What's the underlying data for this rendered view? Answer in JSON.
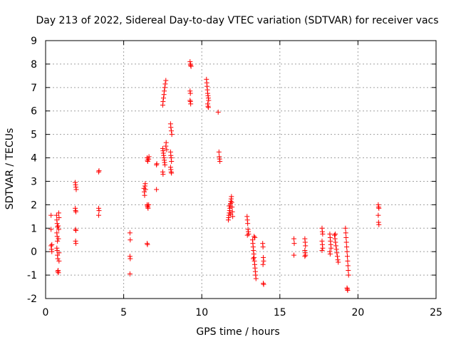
{
  "chart_data": {
    "type": "scatter",
    "title": "Day 213 of 2022, Sidereal Day-to-day VTEC variation (SDTVAR) for receiver vacs",
    "xlabel": "GPS time / hours",
    "ylabel": "SDTVAR / TECUs",
    "xlim": [
      0,
      25
    ],
    "ylim": [
      -2,
      9
    ],
    "xticks": [
      0,
      5,
      10,
      15,
      20,
      25
    ],
    "yticks": [
      -2,
      -1,
      0,
      1,
      2,
      3,
      4,
      5,
      6,
      7,
      8,
      9
    ],
    "grid": true,
    "marker": "+",
    "color": "#ff0000",
    "series": [
      {
        "name": "SDTVAR",
        "points": [
          [
            0.35,
            1.55
          ],
          [
            0.35,
            0.95
          ],
          [
            0.35,
            0.25
          ],
          [
            0.38,
            0.1
          ],
          [
            0.4,
            0.0
          ],
          [
            0.4,
            0.3
          ],
          [
            0.7,
            1.55
          ],
          [
            0.72,
            1.35
          ],
          [
            0.74,
            1.2
          ],
          [
            0.76,
            1.05
          ],
          [
            0.72,
            0.8
          ],
          [
            0.74,
            0.65
          ],
          [
            0.76,
            0.45
          ],
          [
            0.72,
            0.15
          ],
          [
            0.74,
            0.05
          ],
          [
            0.76,
            -0.15
          ],
          [
            0.78,
            -0.3
          ],
          [
            0.8,
            -0.8
          ],
          [
            0.82,
            -0.9
          ],
          [
            0.84,
            1.65
          ],
          [
            0.86,
            1.45
          ],
          [
            0.84,
            0.95
          ],
          [
            0.86,
            -0.05
          ],
          [
            0.86,
            -0.4
          ],
          [
            0.78,
            -0.85
          ],
          [
            0.8,
            1.1
          ],
          [
            0.82,
            0.55
          ],
          [
            1.9,
            2.95
          ],
          [
            1.92,
            2.85
          ],
          [
            1.94,
            2.75
          ],
          [
            1.96,
            2.65
          ],
          [
            1.9,
            1.85
          ],
          [
            1.92,
            1.75
          ],
          [
            1.94,
            1.7
          ],
          [
            1.92,
            0.95
          ],
          [
            1.94,
            0.9
          ],
          [
            1.92,
            0.45
          ],
          [
            1.94,
            0.35
          ],
          [
            3.4,
            3.4
          ],
          [
            3.42,
            3.45
          ],
          [
            3.4,
            1.85
          ],
          [
            3.42,
            1.75
          ],
          [
            3.4,
            1.55
          ],
          [
            5.4,
            0.8
          ],
          [
            5.42,
            0.5
          ],
          [
            5.4,
            -0.2
          ],
          [
            5.42,
            -0.3
          ],
          [
            5.4,
            -0.95
          ],
          [
            6.3,
            2.7
          ],
          [
            6.32,
            2.55
          ],
          [
            6.34,
            2.4
          ],
          [
            6.36,
            2.8
          ],
          [
            6.38,
            2.9
          ],
          [
            6.4,
            2.65
          ],
          [
            6.5,
            4.0
          ],
          [
            6.52,
            3.9
          ],
          [
            6.54,
            3.85
          ],
          [
            6.6,
            3.95
          ],
          [
            6.62,
            4.05
          ],
          [
            6.5,
            2.0
          ],
          [
            6.52,
            1.95
          ],
          [
            6.54,
            1.9
          ],
          [
            6.56,
            1.85
          ],
          [
            6.6,
            2.0
          ],
          [
            6.5,
            0.35
          ],
          [
            6.52,
            0.3
          ],
          [
            7.1,
            3.7
          ],
          [
            7.12,
            3.75
          ],
          [
            7.1,
            2.65
          ],
          [
            7.5,
            6.25
          ],
          [
            7.52,
            6.4
          ],
          [
            7.55,
            6.55
          ],
          [
            7.58,
            6.7
          ],
          [
            7.6,
            6.85
          ],
          [
            7.63,
            7.0
          ],
          [
            7.66,
            7.15
          ],
          [
            7.7,
            7.3
          ],
          [
            7.5,
            4.4
          ],
          [
            7.52,
            4.3
          ],
          [
            7.54,
            4.2
          ],
          [
            7.56,
            4.1
          ],
          [
            7.58,
            4.0
          ],
          [
            7.6,
            3.9
          ],
          [
            7.62,
            3.8
          ],
          [
            7.64,
            3.7
          ],
          [
            7.5,
            3.4
          ],
          [
            7.52,
            3.3
          ],
          [
            7.7,
            4.5
          ],
          [
            7.72,
            4.65
          ],
          [
            7.75,
            4.35
          ],
          [
            8.0,
            5.45
          ],
          [
            8.02,
            5.3
          ],
          [
            8.05,
            5.15
          ],
          [
            8.08,
            5.0
          ],
          [
            8.0,
            4.25
          ],
          [
            8.02,
            4.1
          ],
          [
            8.04,
            4.0
          ],
          [
            8.06,
            3.85
          ],
          [
            8.0,
            3.6
          ],
          [
            8.02,
            3.5
          ],
          [
            8.04,
            3.4
          ],
          [
            8.06,
            3.35
          ],
          [
            9.25,
            8.1
          ],
          [
            9.27,
            8.0
          ],
          [
            9.29,
            7.95
          ],
          [
            9.31,
            7.9
          ],
          [
            9.25,
            6.85
          ],
          [
            9.27,
            6.75
          ],
          [
            9.25,
            6.45
          ],
          [
            9.27,
            6.4
          ],
          [
            9.29,
            6.3
          ],
          [
            10.3,
            7.35
          ],
          [
            10.32,
            7.2
          ],
          [
            10.34,
            7.05
          ],
          [
            10.36,
            6.9
          ],
          [
            10.38,
            6.75
          ],
          [
            10.4,
            6.65
          ],
          [
            10.42,
            6.55
          ],
          [
            10.44,
            6.45
          ],
          [
            10.4,
            6.2
          ],
          [
            10.42,
            6.15
          ],
          [
            10.38,
            6.3
          ],
          [
            11.05,
            5.95
          ],
          [
            11.1,
            4.25
          ],
          [
            11.12,
            4.05
          ],
          [
            11.14,
            3.95
          ],
          [
            11.16,
            3.85
          ],
          [
            11.7,
            1.35
          ],
          [
            11.72,
            1.45
          ],
          [
            11.74,
            1.55
          ],
          [
            11.76,
            1.65
          ],
          [
            11.78,
            1.75
          ],
          [
            11.8,
            1.85
          ],
          [
            11.82,
            1.95
          ],
          [
            11.84,
            2.05
          ],
          [
            11.86,
            2.15
          ],
          [
            11.88,
            2.25
          ],
          [
            11.9,
            2.35
          ],
          [
            11.92,
            2.1
          ],
          [
            11.94,
            1.9
          ],
          [
            11.96,
            1.7
          ],
          [
            11.98,
            1.5
          ],
          [
            11.75,
            1.95
          ],
          [
            11.85,
            1.6
          ],
          [
            12.9,
            1.5
          ],
          [
            12.92,
            1.35
          ],
          [
            12.94,
            1.2
          ],
          [
            12.96,
            0.95
          ],
          [
            12.98,
            0.85
          ],
          [
            13.0,
            0.75
          ],
          [
            12.92,
            0.7
          ],
          [
            13.25,
            0.5
          ],
          [
            13.27,
            0.35
          ],
          [
            13.29,
            0.2
          ],
          [
            13.31,
            0.05
          ],
          [
            13.33,
            -0.1
          ],
          [
            13.35,
            -0.25
          ],
          [
            13.37,
            -0.4
          ],
          [
            13.39,
            -0.55
          ],
          [
            13.41,
            -0.7
          ],
          [
            13.43,
            -0.85
          ],
          [
            13.45,
            -1.0
          ],
          [
            13.47,
            -1.15
          ],
          [
            13.35,
            0.65
          ],
          [
            13.4,
            0.6
          ],
          [
            13.3,
            -0.3
          ],
          [
            13.9,
            0.35
          ],
          [
            13.92,
            0.2
          ],
          [
            13.94,
            -0.25
          ],
          [
            13.96,
            -0.4
          ],
          [
            13.92,
            -0.55
          ],
          [
            13.94,
            -1.35
          ],
          [
            13.96,
            -1.4
          ],
          [
            15.9,
            0.55
          ],
          [
            15.92,
            0.35
          ],
          [
            15.9,
            -0.15
          ],
          [
            16.6,
            0.55
          ],
          [
            16.62,
            0.4
          ],
          [
            16.64,
            0.25
          ],
          [
            16.6,
            0.05
          ],
          [
            16.62,
            -0.05
          ],
          [
            16.64,
            -0.15
          ],
          [
            16.6,
            -0.2
          ],
          [
            17.7,
            1.0
          ],
          [
            17.72,
            0.85
          ],
          [
            17.74,
            0.75
          ],
          [
            17.7,
            0.45
          ],
          [
            17.72,
            0.3
          ],
          [
            17.74,
            0.15
          ],
          [
            17.7,
            0.05
          ],
          [
            18.2,
            0.75
          ],
          [
            18.22,
            0.6
          ],
          [
            18.24,
            0.45
          ],
          [
            18.26,
            0.3
          ],
          [
            18.28,
            0.15
          ],
          [
            18.2,
            0.0
          ],
          [
            18.22,
            -0.1
          ],
          [
            18.5,
            0.7
          ],
          [
            18.53,
            0.55
          ],
          [
            18.56,
            0.4
          ],
          [
            18.59,
            0.25
          ],
          [
            18.62,
            0.1
          ],
          [
            18.65,
            -0.05
          ],
          [
            18.68,
            -0.2
          ],
          [
            18.71,
            -0.35
          ],
          [
            18.74,
            -0.45
          ],
          [
            18.55,
            0.75
          ],
          [
            19.2,
            1.0
          ],
          [
            19.22,
            0.8
          ],
          [
            19.24,
            0.6
          ],
          [
            19.26,
            0.4
          ],
          [
            19.28,
            0.2
          ],
          [
            19.3,
            0.0
          ],
          [
            19.32,
            -0.2
          ],
          [
            19.34,
            -0.4
          ],
          [
            19.36,
            -0.6
          ],
          [
            19.38,
            -0.8
          ],
          [
            19.4,
            -1.0
          ],
          [
            19.3,
            -1.55
          ],
          [
            19.32,
            -1.6
          ],
          [
            19.34,
            -1.65
          ],
          [
            21.3,
            2.0
          ],
          [
            21.32,
            1.9
          ],
          [
            21.34,
            1.85
          ],
          [
            21.3,
            1.55
          ],
          [
            21.32,
            1.25
          ],
          [
            21.34,
            1.15
          ]
        ]
      }
    ]
  }
}
